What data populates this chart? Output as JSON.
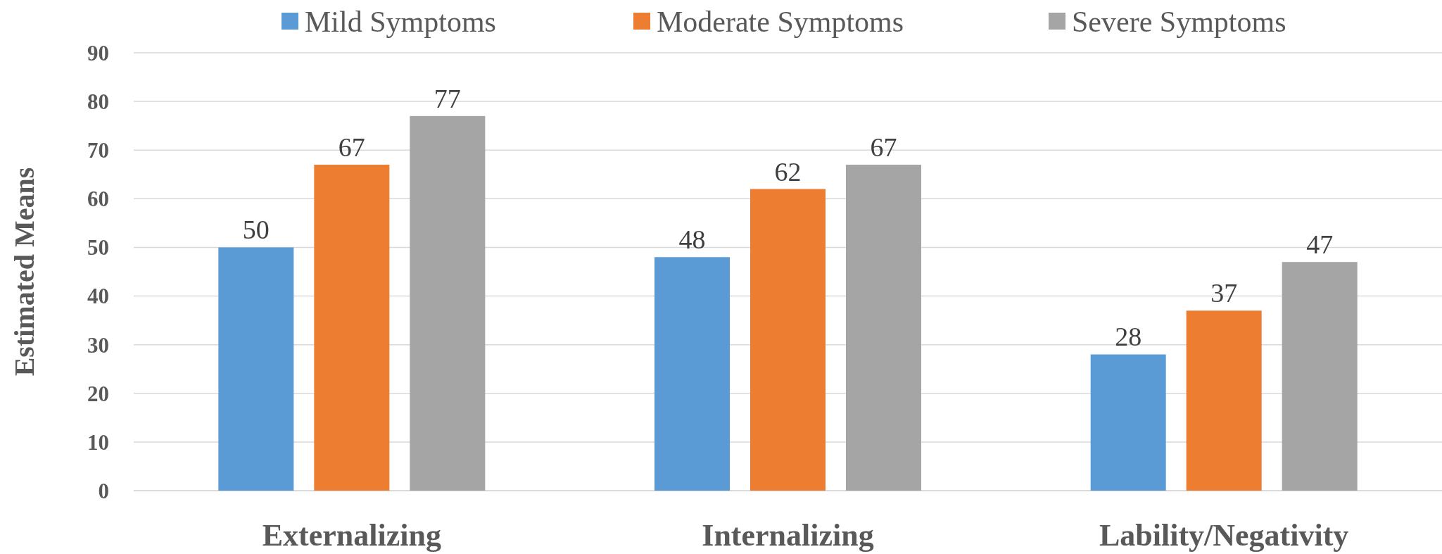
{
  "chart_data": {
    "type": "bar",
    "ylabel": "Estimated Means",
    "categories": [
      "Externalizing",
      "Internalizing",
      "Lability/Negativity"
    ],
    "series": [
      {
        "name": "Mild Symptoms",
        "color": "#5b9bd5",
        "values": [
          50,
          48,
          28
        ]
      },
      {
        "name": "Moderate Symptoms",
        "color": "#ed7d31",
        "values": [
          67,
          62,
          37
        ]
      },
      {
        "name": "Severe Symptoms",
        "color": "#a5a5a5",
        "values": [
          77,
          67,
          47
        ]
      }
    ],
    "ylim": [
      0,
      90
    ],
    "yticks": [
      0,
      10,
      20,
      30,
      40,
      50,
      60,
      70,
      80,
      90
    ],
    "grid": "y",
    "legend": "top",
    "data_labels": true
  }
}
